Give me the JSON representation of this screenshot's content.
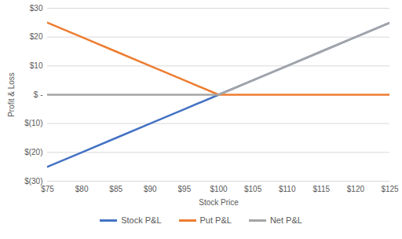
{
  "chart_data": {
    "type": "line",
    "x_label": "Stock Price",
    "y_label": "Profit & Loss",
    "x": [
      75,
      80,
      85,
      90,
      95,
      100,
      105,
      110,
      115,
      120,
      125
    ],
    "series": [
      {
        "name": "Stock P&L",
        "color": "#4472c4",
        "values": [
          -25,
          -20,
          -15,
          -10,
          -5,
          0,
          5,
          10,
          15,
          20,
          25
        ]
      },
      {
        "name": "Put P&L",
        "color": "#ed7d31",
        "values": [
          25,
          20,
          15,
          10,
          5,
          0,
          0,
          0,
          0,
          0,
          0
        ]
      },
      {
        "name": "Net P&L",
        "color": "#a5a5a5",
        "values": [
          0,
          0,
          0,
          0,
          0,
          0,
          5,
          10,
          15,
          20,
          25
        ]
      }
    ],
    "xlim": [
      75,
      125
    ],
    "xticks": [
      {
        "value": 75,
        "label": "$75"
      },
      {
        "value": 80,
        "label": "$80"
      },
      {
        "value": 85,
        "label": "$85"
      },
      {
        "value": 90,
        "label": "$90"
      },
      {
        "value": 95,
        "label": "$95"
      },
      {
        "value": 100,
        "label": "$100"
      },
      {
        "value": 105,
        "label": "$105"
      },
      {
        "value": 110,
        "label": "$110"
      },
      {
        "value": 115,
        "label": "$115"
      },
      {
        "value": 120,
        "label": "$120"
      },
      {
        "value": 125,
        "label": "$125"
      }
    ],
    "ylim": [
      -30,
      30
    ],
    "yticks": [
      {
        "value": -30,
        "label": "$(30)"
      },
      {
        "value": -20,
        "label": "$(20)"
      },
      {
        "value": -10,
        "label": "$(10)"
      },
      {
        "value": 0,
        "label": "$ -"
      },
      {
        "value": 10,
        "label": "$10"
      },
      {
        "value": 20,
        "label": "$20"
      },
      {
        "value": 30,
        "label": "$30"
      }
    ],
    "grid": true,
    "legend": "bottom"
  }
}
